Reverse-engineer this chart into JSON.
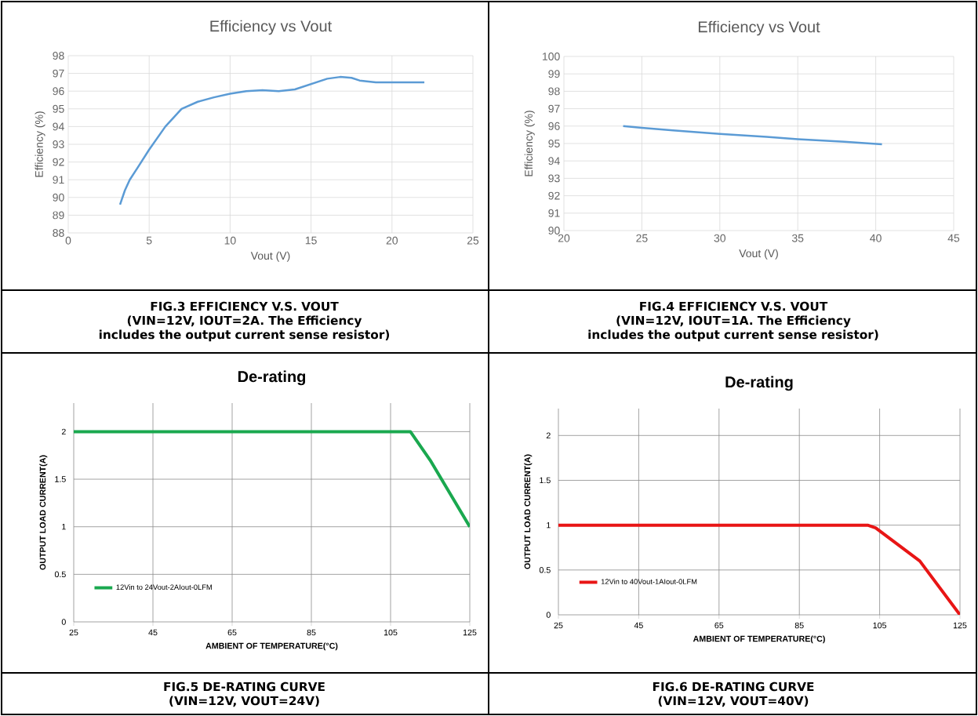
{
  "chart_data": [
    {
      "type": "line",
      "title": "Efficiency vs Vout",
      "xlabel": "Vout (V)",
      "ylabel": "Efficiency (%)",
      "xlim": [
        0,
        25
      ],
      "xticks": [
        0,
        5,
        10,
        15,
        20,
        25
      ],
      "ylim": [
        88,
        98
      ],
      "yticks": [
        88,
        89,
        90,
        91,
        92,
        93,
        94,
        95,
        96,
        97,
        98
      ],
      "grid": true,
      "series": [
        {
          "color": "#5b9bd5",
          "x": [
            3.2,
            3.5,
            3.8,
            4.3,
            5,
            6,
            7,
            8,
            9,
            10,
            11,
            12,
            13,
            13.5,
            14,
            15,
            16,
            16.8,
            17.5,
            18,
            19,
            20,
            21,
            22
          ],
          "values": [
            89.6,
            90.4,
            91,
            91.7,
            92.7,
            94,
            95,
            95.4,
            95.65,
            95.85,
            96,
            96.05,
            96,
            96.05,
            96.1,
            96.4,
            96.7,
            96.8,
            96.75,
            96.6,
            96.5,
            96.5,
            96.5,
            96.5
          ]
        }
      ],
      "annotations": [
        "FIG.3 EFFICIENCY V.S. VOUT",
        "(VIN=12V, IOUT=2A. The Efficiency includes the output current sense resistor)"
      ]
    },
    {
      "type": "line",
      "title": "Efficiency vs Vout",
      "xlabel": "Vout (V)",
      "ylabel": "Efficiency (%)",
      "xlim": [
        20,
        45
      ],
      "xticks": [
        20,
        25,
        30,
        35,
        40,
        45
      ],
      "ylim": [
        90,
        100
      ],
      "yticks": [
        90,
        91,
        92,
        93,
        94,
        95,
        96,
        97,
        98,
        99,
        100
      ],
      "grid": true,
      "series": [
        {
          "color": "#5b9bd5",
          "x": [
            23.8,
            25,
            27,
            30,
            33,
            35,
            38,
            40.4
          ],
          "values": [
            96,
            95.9,
            95.75,
            95.55,
            95.38,
            95.25,
            95.1,
            94.95
          ]
        }
      ],
      "annotations": [
        "FIG.4 EFFICIENCY V.S. VOUT",
        "(VIN=12V, IOUT=1A. The Efficiency includes the output current sense resistor)"
      ]
    },
    {
      "type": "line",
      "title": "De-rating",
      "xlabel": "AMBIENT OF TEMPERATURE(°C)",
      "ylabel": "OUTPUT LOAD CURRENT(A)",
      "xlim": [
        25,
        125
      ],
      "xticks": [
        25,
        45,
        65,
        85,
        105,
        125
      ],
      "ylim": [
        0,
        2.3
      ],
      "yticks": [
        0,
        0.5,
        1,
        1.5,
        2
      ],
      "grid": true,
      "legend": "bottom left",
      "series": [
        {
          "name": "12Vin to 24Vout-2AIout-0LFM",
          "color": "#1aa84f",
          "x": [
            25,
            110,
            115,
            125
          ],
          "values": [
            2,
            2,
            1.7,
            1
          ]
        }
      ],
      "annotations": [
        "FIG.5 DE-RATING CURVE",
        "(VIN=12V, VOUT=24V)"
      ]
    },
    {
      "type": "line",
      "title": "De-rating",
      "xlabel": "AMBIENT OF TEMPERATURE(°C)",
      "ylabel": "OUTPUT LOAD CURRENT(A)",
      "xlim": [
        25,
        125
      ],
      "xticks": [
        25,
        45,
        65,
        85,
        105,
        125
      ],
      "ylim": [
        0,
        2.3
      ],
      "yticks": [
        0,
        0.5,
        1,
        1.5,
        2
      ],
      "grid": true,
      "legend": "bottom left",
      "series": [
        {
          "name": "12Vin to 40Vout-1AIout-0LFM",
          "color": "#e81515",
          "x": [
            25,
            102,
            104,
            115,
            125
          ],
          "values": [
            1,
            1,
            0.97,
            0.6,
            0
          ]
        }
      ],
      "annotations": [
        "FIG.6 DE-RATING CURVE",
        "(VIN=12V, VOUT=40V)"
      ]
    }
  ]
}
